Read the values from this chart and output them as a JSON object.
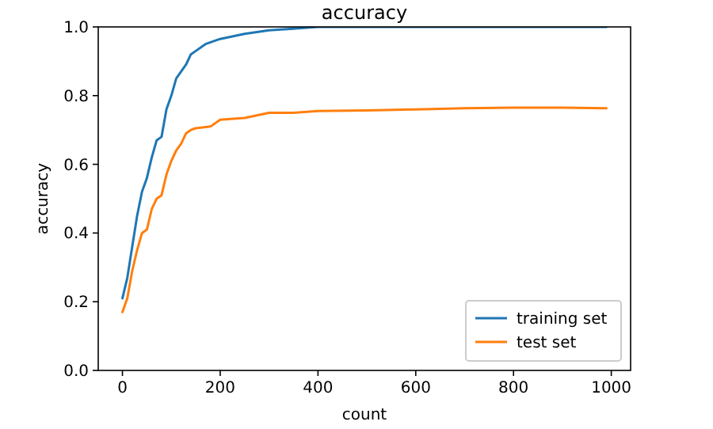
{
  "chart_data": {
    "type": "line",
    "title": "accuracy",
    "xlabel": "count",
    "ylabel": "accuracy",
    "xlim": [
      -49.5,
      1039.5
    ],
    "ylim": [
      0,
      1
    ],
    "xticks": [
      0,
      200,
      400,
      600,
      800,
      1000
    ],
    "yticks": [
      {
        "value": 0,
        "label": "0.0"
      },
      {
        "value": 0.2,
        "label": "0.2"
      },
      {
        "value": 0.4,
        "label": "0.4"
      },
      {
        "value": 0.6,
        "label": "0.6"
      },
      {
        "value": 0.8,
        "label": "0.8"
      },
      {
        "value": 1,
        "label": "1.0"
      }
    ],
    "legend": "bottom right",
    "grid": false,
    "series": [
      {
        "name": "training set",
        "color": "#1f77b4",
        "x": [
          0,
          10,
          20,
          30,
          40,
          50,
          60,
          70,
          80,
          90,
          100,
          110,
          120,
          130,
          140,
          150,
          170,
          200,
          250,
          300,
          350,
          400,
          500,
          600,
          700,
          800,
          900,
          990
        ],
        "values": [
          0.21,
          0.27,
          0.36,
          0.45,
          0.52,
          0.56,
          0.62,
          0.67,
          0.68,
          0.76,
          0.8,
          0.85,
          0.87,
          0.89,
          0.92,
          0.93,
          0.95,
          0.965,
          0.98,
          0.99,
          0.995,
          1,
          1,
          1,
          1,
          1,
          1,
          1
        ]
      },
      {
        "name": "test set",
        "color": "#ff7f0e",
        "x": [
          0,
          10,
          20,
          30,
          40,
          50,
          60,
          70,
          80,
          90,
          100,
          110,
          120,
          130,
          140,
          150,
          180,
          200,
          250,
          300,
          350,
          400,
          500,
          600,
          700,
          800,
          900,
          990
        ],
        "values": [
          0.17,
          0.21,
          0.29,
          0.35,
          0.4,
          0.41,
          0.47,
          0.5,
          0.51,
          0.57,
          0.61,
          0.64,
          0.66,
          0.69,
          0.7,
          0.705,
          0.71,
          0.73,
          0.735,
          0.75,
          0.75,
          0.755,
          0.757,
          0.76,
          0.763,
          0.765,
          0.765,
          0.763
        ]
      }
    ]
  }
}
